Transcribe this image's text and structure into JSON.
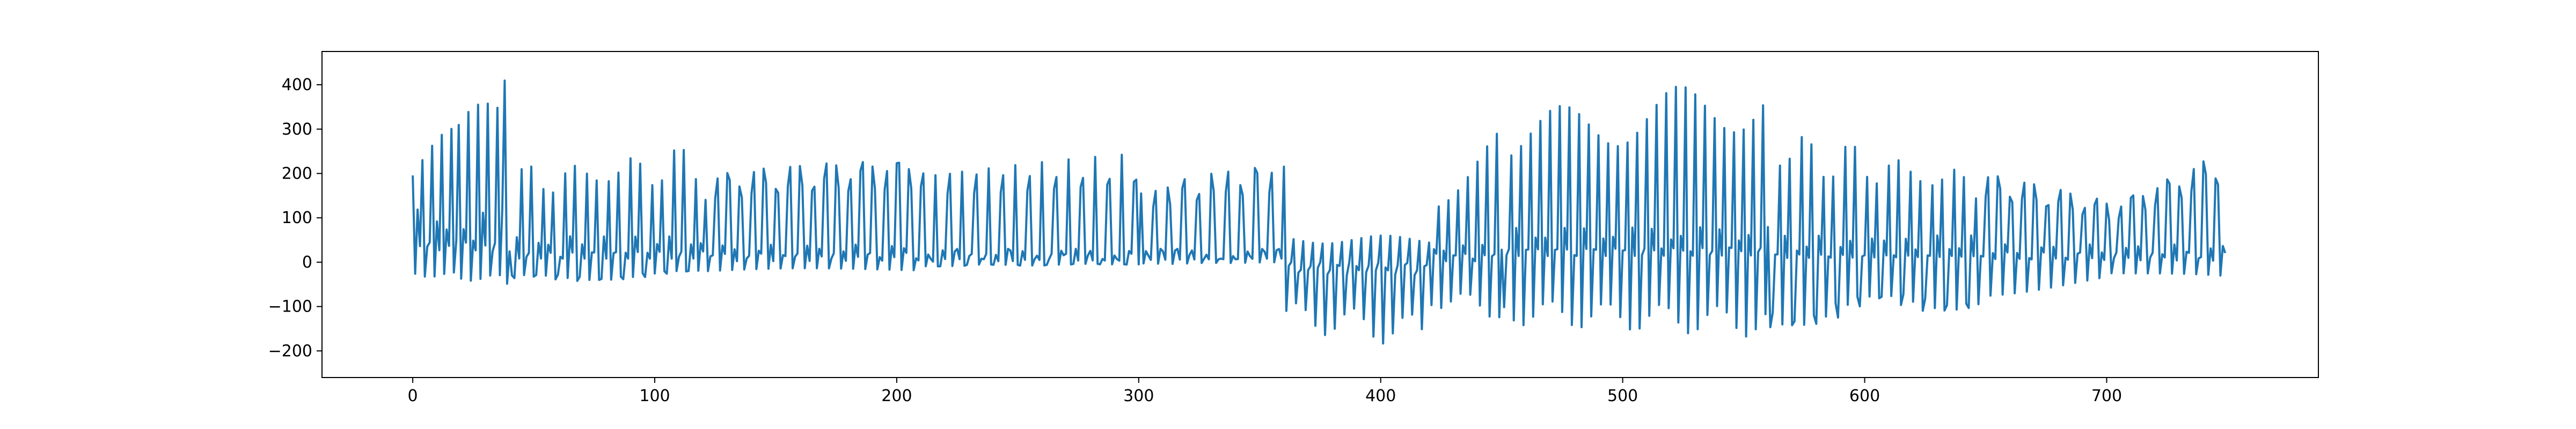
{
  "chart_data": {
    "type": "line",
    "title": "",
    "xlabel": "",
    "ylabel": "",
    "xlim": [
      -37.5,
      787.5
    ],
    "ylim": [
      -260,
      475
    ],
    "grid": false,
    "legend": "none",
    "line_color": "#1f77b4",
    "xticks": [
      0,
      100,
      200,
      300,
      400,
      500,
      600,
      700
    ],
    "xtick_labels": [
      "0",
      "100",
      "200",
      "300",
      "400",
      "500",
      "600",
      "700"
    ],
    "yticks": [
      -200,
      -100,
      0,
      100,
      200,
      300,
      400
    ],
    "ytick_labels": [
      "−200",
      "−100",
      "0",
      "100",
      "200",
      "300",
      "400"
    ],
    "segments": [
      {
        "x0": 0,
        "x1": 40,
        "peak": [
          230,
          420
        ],
        "trough": [
          -30,
          -50
        ],
        "mid": 120,
        "period": 3.8
      },
      {
        "x0": 40,
        "x1": 120,
        "peak": [
          210,
          260
        ],
        "trough": [
          -50,
          -30
        ],
        "mid": 60,
        "period": 4.5
      },
      {
        "x0": 120,
        "x1": 210,
        "peak": [
          200,
          240
        ],
        "trough": [
          -25,
          -20
        ],
        "mid": 40,
        "period": 5
      },
      {
        "x0": 210,
        "x1": 300,
        "peak": [
          215,
          245
        ],
        "trough": [
          -10,
          -5
        ],
        "mid": 30,
        "period": 5.5
      },
      {
        "x0": 300,
        "x1": 360,
        "peak": [
          170,
          230
        ],
        "trough": [
          -5,
          0
        ],
        "mid": 30,
        "period": 6
      },
      {
        "x0": 360,
        "x1": 420,
        "peak": [
          60,
          60
        ],
        "trough": [
          -150,
          -200
        ],
        "mid": -30,
        "period": 4
      },
      {
        "x0": 420,
        "x1": 450,
        "peak": [
          160,
          300
        ],
        "trough": [
          -100,
          -130
        ],
        "mid": 40,
        "period": 4
      },
      {
        "x0": 450,
        "x1": 560,
        "peak": [
          330,
          430
        ],
        "trough": [
          -140,
          -170
        ],
        "mid": 80,
        "period": 4
      },
      {
        "x0": 560,
        "x1": 650,
        "peak": [
          300,
          200
        ],
        "trough": [
          -150,
          -100
        ],
        "mid": 60,
        "period": 4.5
      },
      {
        "x0": 650,
        "x1": 700,
        "peak": [
          200,
          140
        ],
        "trough": [
          -80,
          -40
        ],
        "mid": 40,
        "period": 5
      },
      {
        "x0": 700,
        "x1": 749,
        "peak": [
          130,
          250
        ],
        "trough": [
          -30,
          -50
        ],
        "mid": 40,
        "period": 5
      }
    ],
    "n_points": 750
  }
}
